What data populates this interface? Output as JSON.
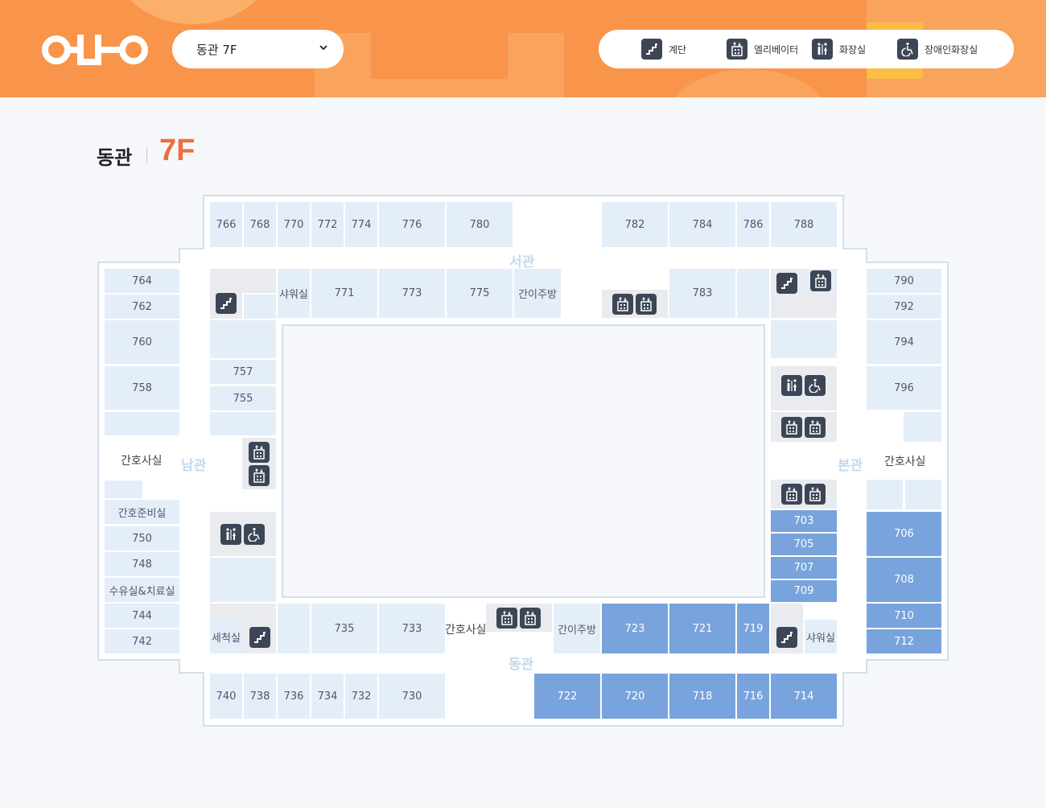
{
  "header": {
    "building_select": "동관 7F",
    "legend": {
      "stairs": "계단",
      "elevator": "엘리베이터",
      "restroom": "화장실",
      "accessible_restroom": "장애인화장실"
    }
  },
  "title": {
    "wing": "동관",
    "floor": "7F"
  },
  "wings": {
    "north": "서관",
    "south": "동관",
    "west": "남관",
    "east": "본관"
  },
  "rooms": {
    "r766": "766",
    "r768": "768",
    "r770": "770",
    "r772": "772",
    "r774": "774",
    "r776": "776",
    "r780": "780",
    "r782": "782",
    "r784": "784",
    "r786": "786",
    "r788": "788",
    "shower_n": "샤워실",
    "r771": "771",
    "r773": "773",
    "r775": "775",
    "kitchen_n": "간이주방",
    "r783": "783",
    "r764": "764",
    "r762": "762",
    "r760": "760",
    "r758": "758",
    "r757": "757",
    "r755": "755",
    "nurse_w": "간호사실",
    "nurse_prep": "간호준비실",
    "r750": "750",
    "r748": "748",
    "treatment": "수유실&치료실",
    "r744": "744",
    "r742": "742",
    "r790": "790",
    "r792": "792",
    "r794": "794",
    "r796": "796",
    "nurse_e": "간호사실",
    "r703": "703",
    "r705": "705",
    "r707": "707",
    "r709": "709",
    "r706": "706",
    "r708": "708",
    "r710": "710",
    "r712": "712",
    "wash": "세척실",
    "r735": "735",
    "r733": "733",
    "nurse_s": "간호사실",
    "kitchen_s": "간이주방",
    "r723": "723",
    "r721": "721",
    "r719": "719",
    "shower_s": "샤워실",
    "r740": "740",
    "r738": "738",
    "r736": "736",
    "r734": "734",
    "r732": "732",
    "r730": "730",
    "r722": "722",
    "r720": "720",
    "r718": "718",
    "r716": "716",
    "r714": "714"
  }
}
